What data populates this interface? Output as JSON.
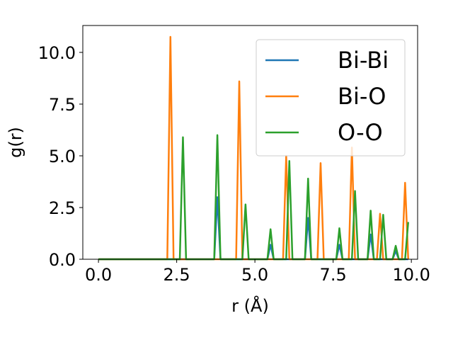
{
  "chart_data": {
    "type": "line",
    "xlabel": "r (Å)",
    "ylabel": "g(r)",
    "xlim": [
      -0.5,
      10.2
    ],
    "ylim": [
      0,
      11.3
    ],
    "xticks": [
      0.0,
      2.5,
      5.0,
      7.5,
      10.0
    ],
    "xtick_labels": [
      "0.0",
      "2.5",
      "5.0",
      "7.5",
      "10.0"
    ],
    "yticks": [
      0.0,
      2.5,
      5.0,
      7.5,
      10.0
    ],
    "ytick_labels": [
      "0.0",
      "2.5",
      "5.0",
      "7.5",
      "10.0"
    ],
    "grid": false,
    "legend_position": "top-right",
    "series": [
      {
        "name": "Bi-Bi",
        "color": "#1f77b4",
        "x": [
          0.0,
          3.7,
          3.8,
          3.9,
          5.4,
          5.5,
          5.6,
          6.6,
          6.7,
          6.8,
          7.6,
          7.7,
          7.8,
          8.6,
          8.7,
          8.8,
          9.4,
          9.5,
          9.6,
          9.9
        ],
        "y": [
          0.0,
          0.0,
          3.0,
          0.0,
          0.0,
          0.7,
          0.0,
          0.0,
          2.0,
          0.0,
          0.0,
          0.7,
          0.0,
          0.0,
          1.2,
          0.0,
          0.0,
          0.4,
          0.0,
          0.0
        ]
      },
      {
        "name": "Bi-O",
        "color": "#ff7f0e",
        "x": [
          0.0,
          2.2,
          2.3,
          2.4,
          4.4,
          4.5,
          4.6,
          5.9,
          6.0,
          6.1,
          7.0,
          7.1,
          7.2,
          8.0,
          8.1,
          8.2,
          8.9,
          9.0,
          9.1,
          9.7,
          9.8,
          9.9
        ],
        "y": [
          0.0,
          0.0,
          10.75,
          0.0,
          0.0,
          8.6,
          0.0,
          0.0,
          5.0,
          0.0,
          0.0,
          4.65,
          0.0,
          0.0,
          5.4,
          0.0,
          0.0,
          2.2,
          0.0,
          0.0,
          3.7,
          0.0
        ]
      },
      {
        "name": "O-O",
        "color": "#2ca02c",
        "x": [
          0.0,
          2.6,
          2.7,
          2.8,
          3.7,
          3.8,
          3.9,
          4.6,
          4.7,
          4.8,
          5.4,
          5.5,
          5.6,
          6.0,
          6.1,
          6.2,
          6.6,
          6.7,
          6.8,
          7.6,
          7.7,
          7.8,
          8.1,
          8.2,
          8.3,
          8.6,
          8.7,
          8.8,
          9.0,
          9.1,
          9.2,
          9.4,
          9.5,
          9.6,
          9.8,
          9.9
        ],
        "y": [
          0.0,
          0.0,
          5.9,
          0.0,
          0.0,
          6.0,
          0.0,
          0.0,
          2.65,
          0.0,
          0.0,
          1.45,
          0.0,
          0.0,
          4.75,
          0.0,
          0.0,
          3.9,
          0.0,
          0.0,
          1.5,
          0.0,
          0.0,
          3.3,
          0.0,
          0.0,
          2.35,
          0.0,
          0.0,
          2.15,
          0.0,
          0.0,
          0.65,
          0.0,
          0.0,
          1.8
        ]
      }
    ]
  }
}
